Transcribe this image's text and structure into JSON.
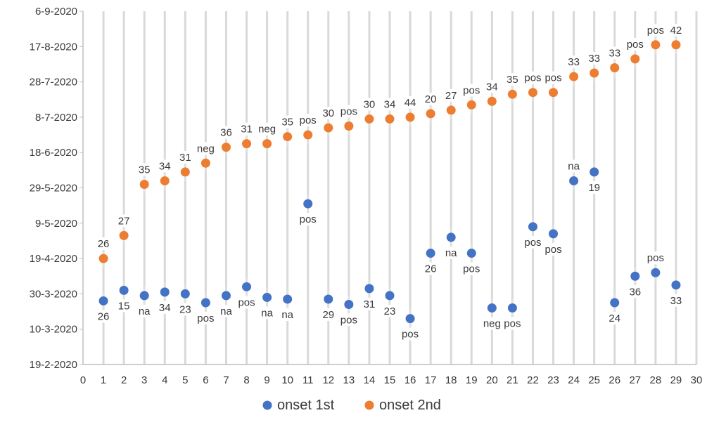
{
  "chart_data": {
    "type": "scatter",
    "title": "",
    "xlabel": "",
    "ylabel": "",
    "xlim": [
      0,
      30
    ],
    "x_ticks": [
      0,
      1,
      2,
      3,
      4,
      5,
      6,
      7,
      8,
      9,
      10,
      11,
      12,
      13,
      14,
      15,
      16,
      17,
      18,
      19,
      20,
      21,
      22,
      23,
      24,
      25,
      26,
      27,
      28,
      29,
      30
    ],
    "ylim": [
      "2020-02-19",
      "2020-09-06"
    ],
    "y_ticks": [
      "19-2-2020",
      "10-3-2020",
      "30-3-2020",
      "19-4-2020",
      "9-5-2020",
      "29-5-2020",
      "18-6-2020",
      "8-7-2020",
      "28-7-2020",
      "17-8-2020",
      "6-9-2020"
    ],
    "grid": {
      "vertical": true,
      "horizontal": false
    },
    "legend_position": "bottom",
    "series": [
      {
        "name": "onset 1st",
        "color": "#4472c4",
        "points": [
          {
            "x": 1,
            "y": "2020-03-26",
            "label": "26"
          },
          {
            "x": 2,
            "y": "2020-04-01",
            "label": "15"
          },
          {
            "x": 3,
            "y": "2020-03-29",
            "label": "na"
          },
          {
            "x": 4,
            "y": "2020-03-31",
            "label": "34"
          },
          {
            "x": 5,
            "y": "2020-03-30",
            "label": "23"
          },
          {
            "x": 6,
            "y": "2020-03-25",
            "label": "pos"
          },
          {
            "x": 7,
            "y": "2020-03-29",
            "label": "na"
          },
          {
            "x": 8,
            "y": "2020-04-03",
            "label": "pos"
          },
          {
            "x": 9,
            "y": "2020-03-28",
            "label": "na"
          },
          {
            "x": 10,
            "y": "2020-03-27",
            "label": "na"
          },
          {
            "x": 11,
            "y": "2020-05-20",
            "label": "pos"
          },
          {
            "x": 12,
            "y": "2020-03-27",
            "label": "29"
          },
          {
            "x": 13,
            "y": "2020-03-24",
            "label": "pos"
          },
          {
            "x": 14,
            "y": "2020-04-02",
            "label": "31"
          },
          {
            "x": 15,
            "y": "2020-03-29",
            "label": "23"
          },
          {
            "x": 16,
            "y": "2020-03-16",
            "label": "pos"
          },
          {
            "x": 17,
            "y": "2020-04-22",
            "label": "26"
          },
          {
            "x": 18,
            "y": "2020-05-01",
            "label": "na"
          },
          {
            "x": 19,
            "y": "2020-04-22",
            "label": "pos"
          },
          {
            "x": 20,
            "y": "2020-03-22",
            "label": "neg"
          },
          {
            "x": 21,
            "y": "2020-03-22",
            "label": "pos"
          },
          {
            "x": 22,
            "y": "2020-05-07",
            "label": "pos"
          },
          {
            "x": 23,
            "y": "2020-05-03",
            "label": "pos"
          },
          {
            "x": 24,
            "y": "2020-06-02",
            "label": "na"
          },
          {
            "x": 25,
            "y": "2020-06-07",
            "label": "19"
          },
          {
            "x": 26,
            "y": "2020-03-25",
            "label": "24"
          },
          {
            "x": 27,
            "y": "2020-04-09",
            "label": "36"
          },
          {
            "x": 28,
            "y": "2020-04-11",
            "label": "pos"
          },
          {
            "x": 29,
            "y": "2020-04-04",
            "label": "33"
          }
        ]
      },
      {
        "name": "onset 2nd",
        "color": "#ed7d31",
        "points": [
          {
            "x": 1,
            "y": "2020-04-19",
            "label": "26"
          },
          {
            "x": 2,
            "y": "2020-05-02",
            "label": "27"
          },
          {
            "x": 3,
            "y": "2020-05-31",
            "label": "35"
          },
          {
            "x": 4,
            "y": "2020-06-02",
            "label": "34"
          },
          {
            "x": 5,
            "y": "2020-06-07",
            "label": "31"
          },
          {
            "x": 6,
            "y": "2020-06-12",
            "label": "neg"
          },
          {
            "x": 7,
            "y": "2020-06-21",
            "label": "36"
          },
          {
            "x": 8,
            "y": "2020-06-23",
            "label": "31"
          },
          {
            "x": 9,
            "y": "2020-06-23",
            "label": "neg"
          },
          {
            "x": 10,
            "y": "2020-06-27",
            "label": "35"
          },
          {
            "x": 11,
            "y": "2020-06-28",
            "label": "pos"
          },
          {
            "x": 12,
            "y": "2020-07-02",
            "label": "30"
          },
          {
            "x": 13,
            "y": "2020-07-03",
            "label": "pos"
          },
          {
            "x": 14,
            "y": "2020-07-07",
            "label": "30"
          },
          {
            "x": 15,
            "y": "2020-07-07",
            "label": "34"
          },
          {
            "x": 16,
            "y": "2020-07-08",
            "label": "44"
          },
          {
            "x": 17,
            "y": "2020-07-10",
            "label": "20"
          },
          {
            "x": 18,
            "y": "2020-07-12",
            "label": "27"
          },
          {
            "x": 19,
            "y": "2020-07-15",
            "label": "pos"
          },
          {
            "x": 20,
            "y": "2020-07-17",
            "label": "34"
          },
          {
            "x": 21,
            "y": "2020-07-21",
            "label": "35"
          },
          {
            "x": 22,
            "y": "2020-07-22",
            "label": "pos"
          },
          {
            "x": 23,
            "y": "2020-07-22",
            "label": "pos"
          },
          {
            "x": 24,
            "y": "2020-07-31",
            "label": "33"
          },
          {
            "x": 25,
            "y": "2020-08-02",
            "label": "33"
          },
          {
            "x": 26,
            "y": "2020-08-05",
            "label": "33"
          },
          {
            "x": 27,
            "y": "2020-08-10",
            "label": "pos"
          },
          {
            "x": 28,
            "y": "2020-08-18",
            "label": "pos"
          },
          {
            "x": 29,
            "y": "2020-08-18",
            "label": "42"
          }
        ]
      }
    ]
  }
}
